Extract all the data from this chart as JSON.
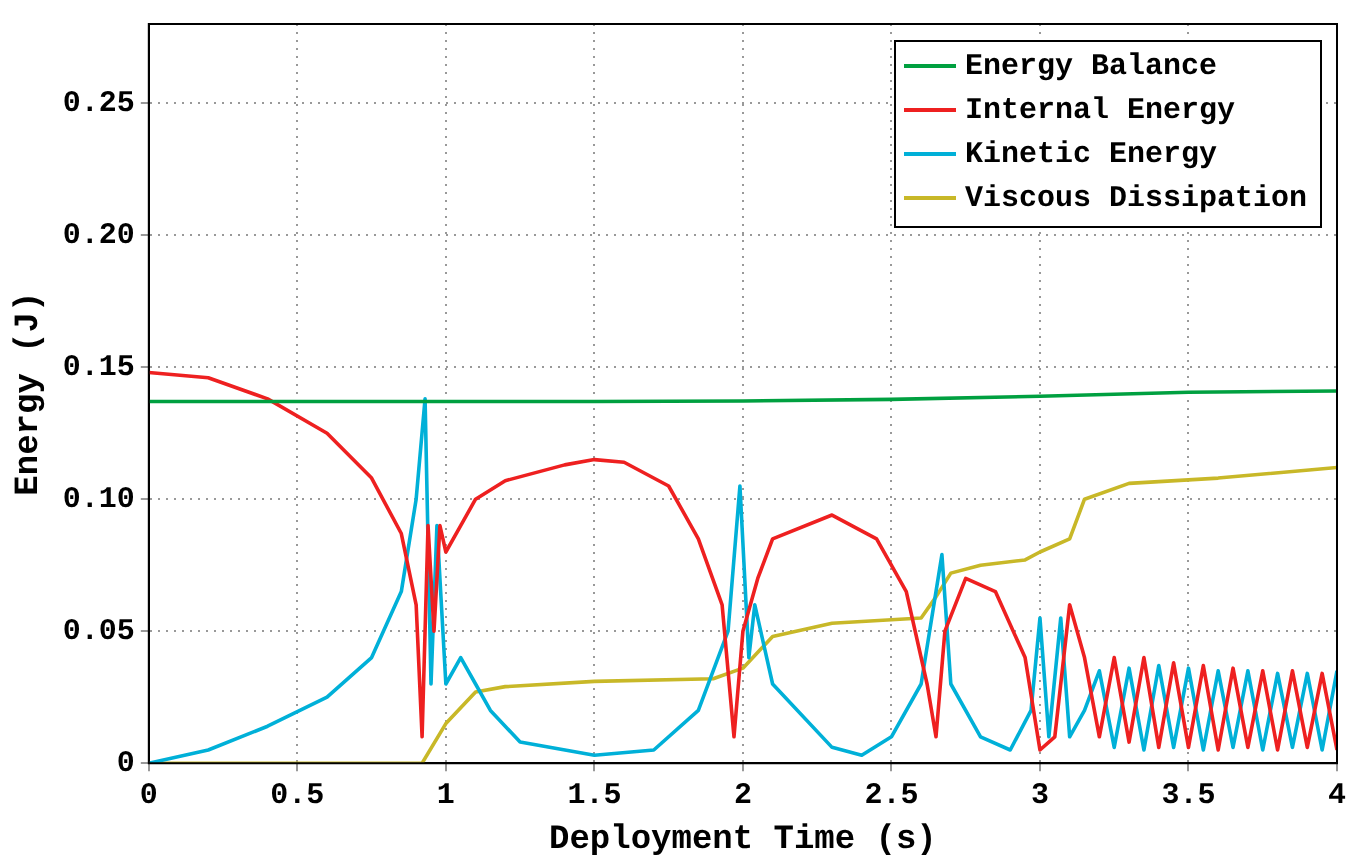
{
  "chart_data": {
    "type": "line",
    "xlabel": "Deployment Time (s)",
    "ylabel": "Energy (J)",
    "xlim": [
      0,
      4
    ],
    "xticks": [
      0,
      0.5,
      1,
      1.5,
      2,
      2.5,
      3,
      3.5,
      4
    ],
    "ylim": [
      0,
      0.28
    ],
    "yticks": [
      0,
      0.05,
      {
        "value": 0.1,
        "label": "0.10"
      },
      0.15,
      {
        "value": 0.2,
        "label": "0.20"
      },
      0.25
    ],
    "grid": true,
    "legend": "top right",
    "marker": "none",
    "line_style": "solid",
    "series": [
      {
        "name": "Energy Balance",
        "color": "#00a040",
        "x": [
          0,
          0.5,
          1,
          1.5,
          2,
          2.5,
          3,
          3.5,
          4
        ],
        "values": [
          0.137,
          0.137,
          0.137,
          0.137,
          0.1372,
          0.1378,
          0.139,
          0.1405,
          0.141
        ]
      },
      {
        "name": "Internal Energy",
        "color": "#ee2020",
        "x": [
          0,
          0.2,
          0.4,
          0.6,
          0.75,
          0.85,
          0.9,
          0.92,
          0.94,
          0.96,
          0.98,
          1.0,
          1.05,
          1.1,
          1.2,
          1.4,
          1.5,
          1.6,
          1.75,
          1.85,
          1.93,
          1.97,
          2.0,
          2.05,
          2.1,
          2.3,
          2.45,
          2.55,
          2.62,
          2.65,
          2.68,
          2.75,
          2.85,
          2.95,
          3.0,
          3.05,
          3.1,
          3.15,
          3.2,
          3.25,
          3.3,
          3.35,
          3.4,
          3.45,
          3.5,
          3.55,
          3.6,
          3.65,
          3.7,
          3.75,
          3.8,
          3.85,
          3.9,
          3.95,
          4.0
        ],
        "values": [
          0.148,
          0.146,
          0.138,
          0.125,
          0.108,
          0.087,
          0.06,
          0.01,
          0.09,
          0.05,
          0.09,
          0.08,
          0.09,
          0.1,
          0.107,
          0.113,
          0.115,
          0.114,
          0.105,
          0.085,
          0.06,
          0.01,
          0.05,
          0.07,
          0.085,
          0.094,
          0.085,
          0.065,
          0.03,
          0.01,
          0.05,
          0.07,
          0.065,
          0.04,
          0.005,
          0.01,
          0.06,
          0.04,
          0.01,
          0.04,
          0.008,
          0.04,
          0.006,
          0.038,
          0.006,
          0.037,
          0.005,
          0.036,
          0.006,
          0.035,
          0.005,
          0.035,
          0.006,
          0.034,
          0.005
        ]
      },
      {
        "name": "Kinetic Energy",
        "color": "#00b0d8",
        "x": [
          0,
          0.2,
          0.4,
          0.6,
          0.75,
          0.85,
          0.9,
          0.93,
          0.95,
          0.97,
          1.0,
          1.05,
          1.1,
          1.15,
          1.25,
          1.5,
          1.7,
          1.85,
          1.95,
          1.99,
          2.02,
          2.04,
          2.1,
          2.3,
          2.4,
          2.5,
          2.6,
          2.67,
          2.7,
          2.8,
          2.9,
          2.97,
          3.0,
          3.03,
          3.07,
          3.1,
          3.15,
          3.2,
          3.25,
          3.3,
          3.35,
          3.4,
          3.45,
          3.5,
          3.55,
          3.6,
          3.65,
          3.7,
          3.75,
          3.8,
          3.85,
          3.9,
          3.95,
          4.0
        ],
        "values": [
          0,
          0.005,
          0.014,
          0.025,
          0.04,
          0.065,
          0.1,
          0.138,
          0.03,
          0.09,
          0.03,
          0.04,
          0.03,
          0.02,
          0.008,
          0.003,
          0.005,
          0.02,
          0.05,
          0.105,
          0.04,
          0.06,
          0.03,
          0.006,
          0.003,
          0.01,
          0.03,
          0.079,
          0.03,
          0.01,
          0.005,
          0.02,
          0.055,
          0.01,
          0.055,
          0.01,
          0.02,
          0.035,
          0.006,
          0.036,
          0.005,
          0.037,
          0.006,
          0.036,
          0.005,
          0.035,
          0.006,
          0.035,
          0.005,
          0.034,
          0.006,
          0.034,
          0.005,
          0.035
        ]
      },
      {
        "name": "Viscous Dissipation",
        "color": "#c8b828",
        "x": [
          0,
          0.92,
          1.0,
          1.1,
          1.2,
          1.5,
          1.9,
          2.0,
          2.1,
          2.3,
          2.6,
          2.65,
          2.7,
          2.8,
          2.95,
          3.0,
          3.1,
          3.15,
          3.3,
          3.6,
          4.0
        ],
        "values": [
          0,
          0,
          0.015,
          0.027,
          0.029,
          0.031,
          0.032,
          0.036,
          0.048,
          0.053,
          0.055,
          0.063,
          0.072,
          0.075,
          0.077,
          0.08,
          0.085,
          0.1,
          0.106,
          0.108,
          0.112
        ]
      }
    ]
  }
}
